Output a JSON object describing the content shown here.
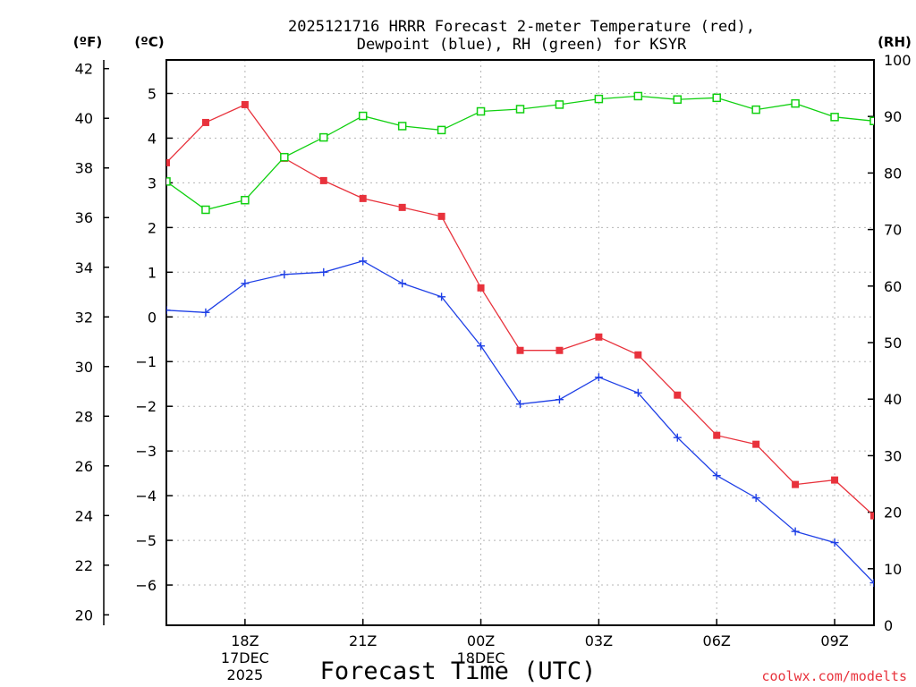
{
  "chart_data": {
    "type": "line",
    "title": "2025121716 HRRR Forecast 2-meter Temperature (red),",
    "subtitle": "Dewpoint (blue), RH (green) for KSYR",
    "xlabel": "Forecast Time (UTC)",
    "credit": "coolwx.com/modelts",
    "units": {
      "fahrenheit": "(ºF)",
      "celsius": "(ºC)",
      "rh": "(RH)"
    },
    "x_range": [
      16,
      34
    ],
    "x_ticks": [
      {
        "x": 18,
        "lines": [
          "18Z",
          "17DEC",
          "2025"
        ]
      },
      {
        "x": 21,
        "lines": [
          "21Z"
        ]
      },
      {
        "x": 24,
        "lines": [
          "00Z",
          "18DEC"
        ]
      },
      {
        "x": 27,
        "lines": [
          "03Z"
        ]
      },
      {
        "x": 30,
        "lines": [
          "06Z"
        ]
      },
      {
        "x": 33,
        "lines": [
          "09Z"
        ]
      }
    ],
    "celsius_axis": {
      "range": [
        -6.9,
        5.75
      ],
      "ticks": [
        5,
        4,
        3,
        2,
        1,
        0,
        -1,
        -2,
        -3,
        -4,
        -5,
        -6
      ],
      "tick_labels": [
        "5",
        "4",
        "3",
        "2",
        "1",
        "0",
        "−1",
        "−2",
        "−3",
        "−4",
        "−5",
        "−6"
      ]
    },
    "fahrenheit_ticks": [
      42,
      40,
      38,
      36,
      34,
      32,
      30,
      28,
      26,
      24,
      22,
      20
    ],
    "rh_axis": {
      "range": [
        0,
        100
      ],
      "ticks": [
        100,
        90,
        80,
        70,
        60,
        50,
        40,
        30,
        20,
        10,
        0
      ]
    },
    "x": [
      16,
      17,
      18,
      19,
      20,
      21,
      22,
      23,
      24,
      25,
      26,
      27,
      28,
      29,
      30,
      31,
      32,
      33,
      34
    ],
    "series": [
      {
        "name": "2-meter Temperature",
        "axis": "celsius",
        "color": "#e8323c",
        "marker": "filled-square",
        "values": [
          3.45,
          4.35,
          4.75,
          3.55,
          3.05,
          2.65,
          2.45,
          2.25,
          0.65,
          -0.75,
          -0.75,
          -0.45,
          -0.85,
          -1.75,
          -2.65,
          -2.85,
          -3.75,
          -3.65,
          -4.45
        ]
      },
      {
        "name": "Dewpoint",
        "axis": "celsius",
        "color": "#1e3fe6",
        "marker": "plus",
        "values": [
          0.15,
          0.1,
          0.75,
          0.95,
          1.0,
          1.25,
          0.75,
          0.45,
          -0.65,
          -1.95,
          -1.85,
          -1.35,
          -1.7,
          -2.7,
          -3.55,
          -4.05,
          -4.8,
          -5.05,
          -5.95
        ]
      },
      {
        "name": "RH",
        "axis": "rh",
        "color": "#10d010",
        "marker": "open-square",
        "values": [
          78.5,
          73.5,
          75.2,
          82.8,
          86.3,
          90.1,
          88.3,
          87.6,
          90.9,
          91.3,
          92.1,
          93.1,
          93.6,
          93.0,
          93.3,
          91.2,
          92.3,
          89.9,
          89.2
        ]
      }
    ]
  }
}
